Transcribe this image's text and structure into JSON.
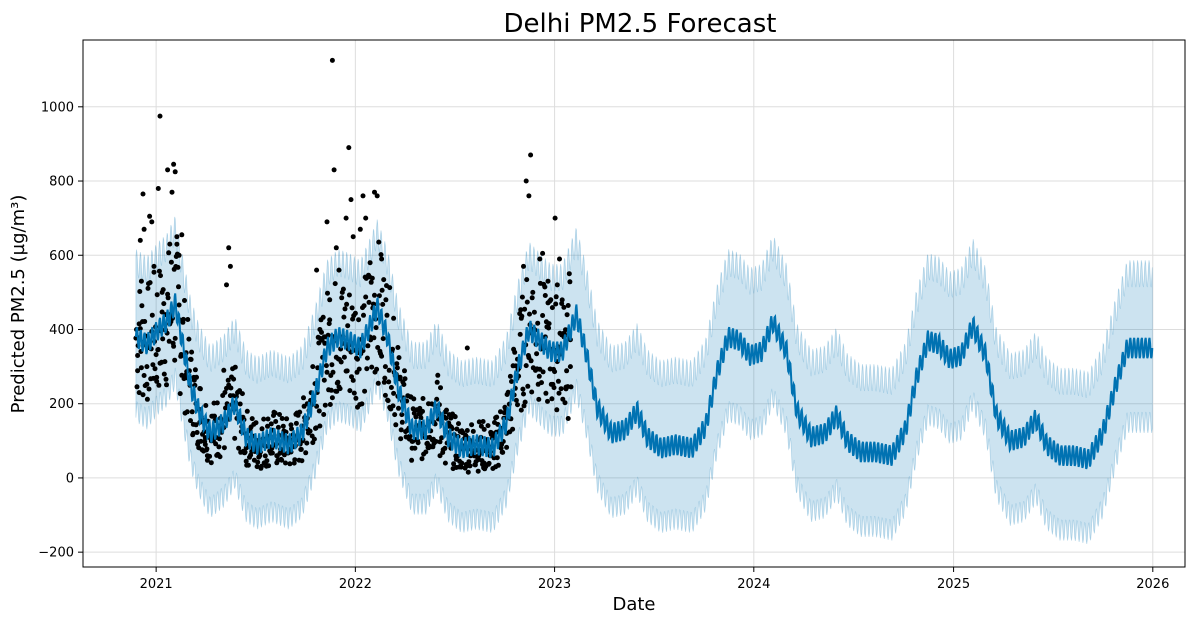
{
  "chart_data": {
    "type": "line",
    "title": "Delhi PM2.5 Forecast",
    "xlabel": "Date",
    "ylabel": "Predicted PM2.5 (µg/m³)",
    "x_ticks": [
      "2021",
      "2022",
      "2023",
      "2024",
      "2025",
      "2026"
    ],
    "y_ticks": [
      "−200",
      "0",
      "200",
      "400",
      "600",
      "800",
      "1000"
    ],
    "xlim": [
      "2020-08-20",
      "2026-03-01"
    ],
    "ylim": [
      -240,
      1180
    ],
    "grid": true,
    "history_range": [
      "2020-11-25",
      "2023-01-31"
    ],
    "forecast_range": [
      "2020-11-25",
      "2025-12-31"
    ],
    "series": [
      {
        "role": "forecast",
        "color": "#0072B2",
        "points": [
          [
            "2020-11-25",
            380
          ],
          [
            "2020-12-15",
            360
          ],
          [
            "2021-01-05",
            400
          ],
          [
            "2021-01-20",
            420
          ],
          [
            "2021-02-05",
            470
          ],
          [
            "2021-02-20",
            350
          ],
          [
            "2021-03-05",
            250
          ],
          [
            "2021-03-20",
            180
          ],
          [
            "2021-04-10",
            120
          ],
          [
            "2021-05-05",
            150
          ],
          [
            "2021-05-25",
            200
          ],
          [
            "2021-06-15",
            110
          ],
          [
            "2021-07-05",
            90
          ],
          [
            "2021-08-01",
            110
          ],
          [
            "2021-09-01",
            90
          ],
          [
            "2021-09-25",
            120
          ],
          [
            "2021-10-20",
            230
          ],
          [
            "2021-11-10",
            350
          ],
          [
            "2021-11-30",
            380
          ],
          [
            "2021-12-20",
            370
          ],
          [
            "2022-01-10",
            350
          ],
          [
            "2022-01-25",
            400
          ],
          [
            "2022-02-10",
            460
          ],
          [
            "2022-03-01",
            380
          ],
          [
            "2022-03-20",
            240
          ],
          [
            "2022-04-15",
            130
          ],
          [
            "2022-05-10",
            130
          ],
          [
            "2022-05-30",
            190
          ],
          [
            "2022-06-20",
            110
          ],
          [
            "2022-07-15",
            80
          ],
          [
            "2022-08-10",
            90
          ],
          [
            "2022-09-10",
            80
          ],
          [
            "2022-10-05",
            150
          ],
          [
            "2022-10-25",
            290
          ],
          [
            "2022-11-15",
            400
          ],
          [
            "2022-12-05",
            370
          ],
          [
            "2022-12-25",
            340
          ],
          [
            "2023-01-15",
            340
          ],
          [
            "2023-02-10",
            440
          ],
          [
            "2023-03-01",
            330
          ],
          [
            "2023-03-20",
            190
          ],
          [
            "2023-04-15",
            120
          ],
          [
            "2023-05-10",
            130
          ],
          [
            "2023-06-01",
            180
          ],
          [
            "2023-06-20",
            110
          ],
          [
            "2023-07-15",
            80
          ],
          [
            "2023-08-10",
            90
          ],
          [
            "2023-09-10",
            80
          ],
          [
            "2023-10-05",
            140
          ],
          [
            "2023-10-25",
            280
          ],
          [
            "2023-11-15",
            380
          ],
          [
            "2023-12-05",
            370
          ],
          [
            "2023-12-25",
            330
          ],
          [
            "2024-01-15",
            340
          ],
          [
            "2024-02-05",
            420
          ],
          [
            "2024-03-01",
            340
          ],
          [
            "2024-03-20",
            180
          ],
          [
            "2024-04-15",
            110
          ],
          [
            "2024-05-10",
            120
          ],
          [
            "2024-06-01",
            170
          ],
          [
            "2024-06-20",
            100
          ],
          [
            "2024-07-15",
            70
          ],
          [
            "2024-08-10",
            70
          ],
          [
            "2024-09-10",
            60
          ],
          [
            "2024-10-05",
            130
          ],
          [
            "2024-10-25",
            270
          ],
          [
            "2024-11-15",
            370
          ],
          [
            "2024-12-05",
            360
          ],
          [
            "2024-12-25",
            320
          ],
          [
            "2025-01-15",
            330
          ],
          [
            "2025-02-05",
            410
          ],
          [
            "2025-03-01",
            330
          ],
          [
            "2025-03-20",
            170
          ],
          [
            "2025-04-15",
            100
          ],
          [
            "2025-05-10",
            110
          ],
          [
            "2025-06-01",
            160
          ],
          [
            "2025-06-20",
            90
          ],
          [
            "2025-07-15",
            60
          ],
          [
            "2025-08-10",
            60
          ],
          [
            "2025-09-05",
            50
          ],
          [
            "2025-10-01",
            120
          ],
          [
            "2025-10-25",
            250
          ],
          [
            "2025-11-15",
            350
          ],
          [
            "2025-12-05",
            350
          ],
          [
            "2025-12-31",
            350
          ]
        ]
      },
      {
        "role": "uncertainty_interval",
        "color": "#0072B2",
        "band_offset": 200
      },
      {
        "role": "observed",
        "color": "#000000",
        "points": [
          [
            "2020-11-28",
            330
          ],
          [
            "2020-12-01",
            415
          ],
          [
            "2020-12-03",
            640
          ],
          [
            "2020-12-05",
            530
          ],
          [
            "2020-12-08",
            765
          ],
          [
            "2020-12-10",
            670
          ],
          [
            "2020-12-15",
            300
          ],
          [
            "2020-12-20",
            705
          ],
          [
            "2020-12-24",
            690
          ],
          [
            "2020-12-28",
            570
          ],
          [
            "2021-01-02",
            260
          ],
          [
            "2021-01-05",
            780
          ],
          [
            "2021-01-08",
            975
          ],
          [
            "2021-01-12",
            500
          ],
          [
            "2021-01-18",
            440
          ],
          [
            "2021-01-22",
            830
          ],
          [
            "2021-01-26",
            630
          ],
          [
            "2021-01-30",
            770
          ],
          [
            "2021-02-02",
            845
          ],
          [
            "2021-02-05",
            825
          ],
          [
            "2021-02-08",
            650
          ],
          [
            "2021-02-12",
            600
          ],
          [
            "2021-02-17",
            655
          ],
          [
            "2021-02-25",
            270
          ],
          [
            "2021-03-05",
            320
          ],
          [
            "2021-03-10",
            120
          ],
          [
            "2021-03-15",
            200
          ],
          [
            "2021-03-22",
            150
          ],
          [
            "2021-04-01",
            90
          ],
          [
            "2021-04-05",
            60
          ],
          [
            "2021-04-12",
            100
          ],
          [
            "2021-04-18",
            110
          ],
          [
            "2021-04-25",
            140
          ],
          [
            "2021-05-05",
            290
          ],
          [
            "2021-05-10",
            520
          ],
          [
            "2021-05-14",
            620
          ],
          [
            "2021-05-17",
            570
          ],
          [
            "2021-05-22",
            200
          ],
          [
            "2021-06-01",
            80
          ],
          [
            "2021-06-08",
            70
          ],
          [
            "2021-06-15",
            45
          ],
          [
            "2021-06-22",
            130
          ],
          [
            "2021-07-01",
            90
          ],
          [
            "2021-07-10",
            60
          ],
          [
            "2021-07-20",
            40
          ],
          [
            "2021-08-01",
            80
          ],
          [
            "2021-08-10",
            60
          ],
          [
            "2021-08-18",
            50
          ],
          [
            "2021-08-28",
            100
          ],
          [
            "2021-09-05",
            70
          ],
          [
            "2021-09-15",
            110
          ],
          [
            "2021-09-25",
            140
          ],
          [
            "2021-10-05",
            200
          ],
          [
            "2021-10-15",
            300
          ],
          [
            "2021-10-22",
            560
          ],
          [
            "2021-10-28",
            400
          ],
          [
            "2021-11-05",
            380
          ],
          [
            "2021-11-10",
            690
          ],
          [
            "2021-11-15",
            480
          ],
          [
            "2021-11-20",
            1125
          ],
          [
            "2021-11-23",
            830
          ],
          [
            "2021-11-27",
            620
          ],
          [
            "2021-12-02",
            560
          ],
          [
            "2021-12-08",
            500
          ],
          [
            "2021-12-15",
            700
          ],
          [
            "2021-12-20",
            890
          ],
          [
            "2021-12-24",
            750
          ],
          [
            "2021-12-28",
            650
          ],
          [
            "2022-01-05",
            320
          ],
          [
            "2022-01-10",
            670
          ],
          [
            "2022-01-15",
            760
          ],
          [
            "2022-01-20",
            700
          ],
          [
            "2022-01-28",
            580
          ],
          [
            "2022-02-05",
            770
          ],
          [
            "2022-02-10",
            760
          ],
          [
            "2022-02-18",
            590
          ],
          [
            "2022-02-25",
            300
          ],
          [
            "2022-03-05",
            190
          ],
          [
            "2022-03-12",
            430
          ],
          [
            "2022-03-20",
            220
          ],
          [
            "2022-03-28",
            150
          ],
          [
            "2022-04-05",
            110
          ],
          [
            "2022-04-15",
            80
          ],
          [
            "2022-04-25",
            100
          ],
          [
            "2022-05-05",
            140
          ],
          [
            "2022-05-15",
            200
          ],
          [
            "2022-05-25",
            150
          ],
          [
            "2022-06-05",
            60
          ],
          [
            "2022-06-15",
            40
          ],
          [
            "2022-06-25",
            80
          ],
          [
            "2022-07-05",
            50
          ],
          [
            "2022-07-15",
            40
          ],
          [
            "2022-07-25",
            350
          ],
          [
            "2022-08-05",
            90
          ],
          [
            "2022-08-15",
            60
          ],
          [
            "2022-08-25",
            40
          ],
          [
            "2022-09-05",
            60
          ],
          [
            "2022-09-15",
            30
          ],
          [
            "2022-09-25",
            80
          ],
          [
            "2022-10-05",
            120
          ],
          [
            "2022-10-15",
            230
          ],
          [
            "2022-10-25",
            320
          ],
          [
            "2022-11-01",
            430
          ],
          [
            "2022-11-05",
            570
          ],
          [
            "2022-11-10",
            800
          ],
          [
            "2022-11-15",
            760
          ],
          [
            "2022-11-18",
            870
          ],
          [
            "2022-11-22",
            500
          ],
          [
            "2022-11-28",
            360
          ],
          [
            "2022-12-05",
            590
          ],
          [
            "2022-12-10",
            605
          ],
          [
            "2022-12-15",
            380
          ],
          [
            "2022-12-20",
            530
          ],
          [
            "2022-12-25",
            480
          ],
          [
            "2023-01-02",
            700
          ],
          [
            "2023-01-06",
            520
          ],
          [
            "2023-01-10",
            590
          ],
          [
            "2023-01-14",
            470
          ],
          [
            "2023-01-18",
            380
          ],
          [
            "2023-01-22",
            240
          ],
          [
            "2023-01-26",
            160
          ],
          [
            "2023-01-30",
            300
          ]
        ]
      }
    ]
  }
}
